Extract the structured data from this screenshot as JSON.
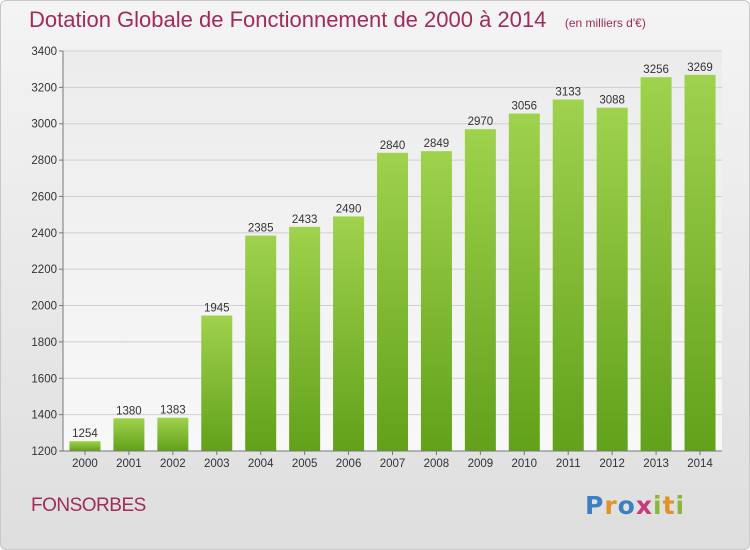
{
  "chart_data": {
    "type": "bar",
    "title": "Dotation Globale de Fonctionnement de 2000 à 2014",
    "subtitle": "(en milliers d'€)",
    "categories": [
      "2000",
      "2001",
      "2002",
      "2003",
      "2004",
      "2005",
      "2006",
      "2007",
      "2008",
      "2009",
      "2010",
      "2011",
      "2012",
      "2013",
      "2014"
    ],
    "values": [
      1254,
      1380,
      1383,
      1945,
      2385,
      2433,
      2490,
      2840,
      2849,
      2970,
      3056,
      3133,
      3088,
      3256,
      3269
    ],
    "ylim": [
      1200,
      3400
    ],
    "yticks": [
      1200,
      1400,
      1600,
      1800,
      2000,
      2200,
      2400,
      2600,
      2800,
      3000,
      3200,
      3400
    ],
    "grid": true,
    "bar_color": "#7fba2e"
  },
  "footer": {
    "commune": "FONSORBES",
    "brand": "Proxiti"
  }
}
